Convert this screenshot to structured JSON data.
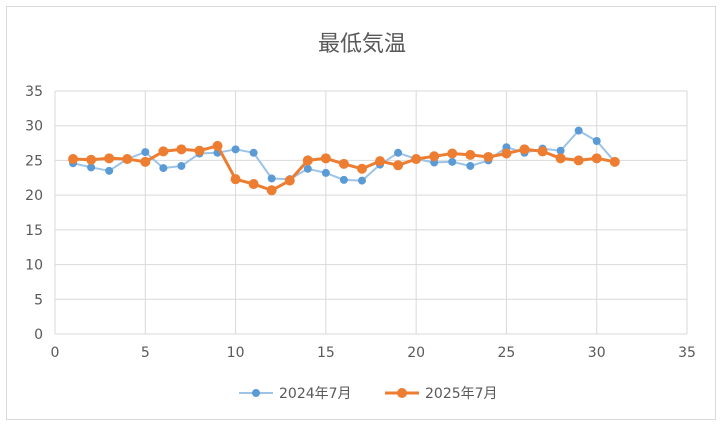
{
  "chart_data": {
    "type": "line",
    "title": "最低気温",
    "xlabel": "",
    "ylabel": "",
    "xlim": [
      0,
      35
    ],
    "ylim": [
      0,
      35
    ],
    "x_ticks": [
      0,
      5,
      10,
      15,
      20,
      25,
      30,
      35
    ],
    "y_ticks": [
      0,
      5,
      10,
      15,
      20,
      25,
      30,
      35
    ],
    "grid": true,
    "legend_position": "bottom",
    "series": [
      {
        "name": "2024年7月",
        "color": "#9dc3e6",
        "marker_color": "#5b9bd5",
        "x": [
          1,
          2,
          3,
          4,
          5,
          6,
          7,
          8,
          9,
          10,
          11,
          12,
          13,
          14,
          15,
          16,
          17,
          18,
          19,
          20,
          21,
          22,
          23,
          24,
          25,
          26,
          27,
          28,
          29,
          30,
          31
        ],
        "values": [
          24.6,
          24.0,
          23.5,
          25.2,
          26.2,
          23.9,
          24.2,
          26.0,
          26.1,
          26.6,
          26.1,
          22.4,
          22.3,
          23.8,
          23.2,
          22.2,
          22.1,
          24.4,
          26.1,
          25.2,
          24.7,
          24.8,
          24.2,
          25.0,
          26.9,
          26.1,
          26.7,
          26.4,
          29.3,
          27.8,
          24.8
        ]
      },
      {
        "name": "2025年7月",
        "color": "#ed7d31",
        "marker_color": "#ed7d31",
        "x": [
          1,
          2,
          3,
          4,
          5,
          6,
          7,
          8,
          9,
          10,
          11,
          12,
          13,
          14,
          15,
          16,
          17,
          18,
          19,
          20,
          21,
          22,
          23,
          24,
          25,
          26,
          27,
          28,
          29,
          30,
          31
        ],
        "values": [
          25.2,
          25.1,
          25.3,
          25.2,
          24.8,
          26.3,
          26.6,
          26.4,
          27.1,
          22.3,
          21.6,
          20.7,
          22.1,
          25.0,
          25.3,
          24.5,
          23.8,
          24.9,
          24.3,
          25.2,
          25.6,
          26.0,
          25.8,
          25.5,
          26.0,
          26.6,
          26.3,
          25.3,
          25.0,
          25.3,
          24.8
        ]
      }
    ]
  }
}
